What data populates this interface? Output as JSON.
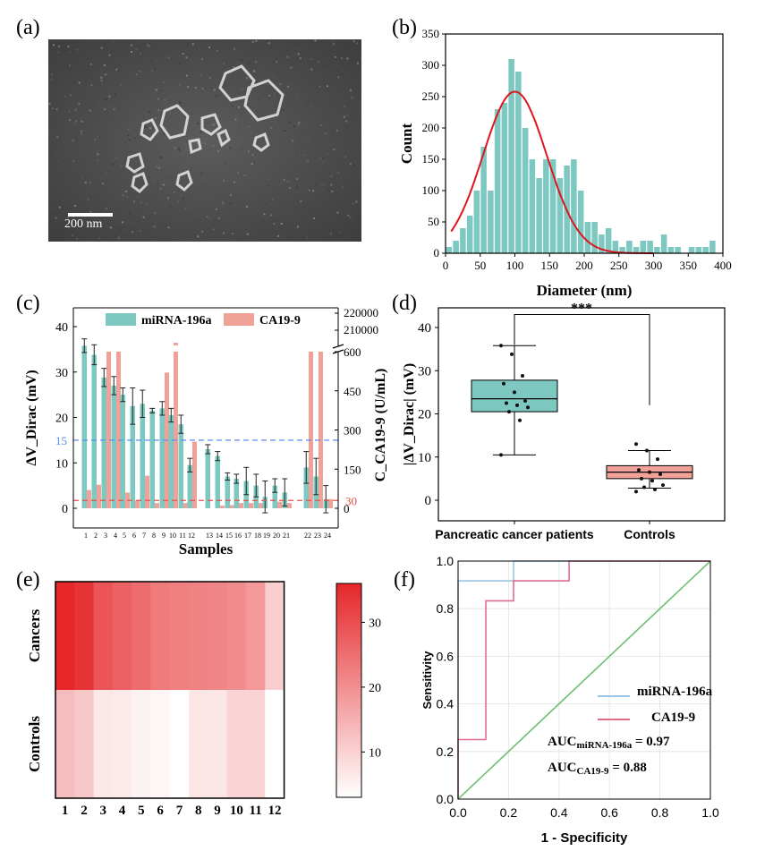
{
  "panel_labels": [
    "(a)",
    "(b)",
    "(c)",
    "(d)",
    "(e)",
    "(f)"
  ],
  "panel_a": {
    "scale_bar_label": "200 nm"
  },
  "chart_data": [
    {
      "panel": "b",
      "type": "bar",
      "xlabel": "Diameter (nm)",
      "ylabel": "Count",
      "xlim": [
        0,
        400
      ],
      "ylim": [
        0,
        350
      ],
      "xticks": [
        0,
        50,
        100,
        150,
        200,
        250,
        300,
        350,
        400
      ],
      "yticks": [
        0,
        50,
        100,
        150,
        200,
        250,
        300,
        350
      ],
      "bin_width": 10,
      "bin_starts": [
        0,
        10,
        20,
        30,
        40,
        50,
        60,
        70,
        80,
        90,
        100,
        110,
        120,
        130,
        140,
        150,
        160,
        170,
        180,
        190,
        200,
        210,
        220,
        230,
        240,
        250,
        260,
        270,
        280,
        290,
        300,
        310,
        320,
        330,
        340,
        350,
        360,
        370,
        380
      ],
      "values": [
        10,
        20,
        40,
        60,
        100,
        170,
        100,
        230,
        240,
        310,
        290,
        200,
        150,
        120,
        150,
        150,
        120,
        140,
        150,
        100,
        50,
        50,
        30,
        40,
        20,
        10,
        20,
        10,
        20,
        20,
        10,
        30,
        10,
        10,
        0,
        10,
        10,
        10,
        20
      ],
      "fit": {
        "type": "gaussian",
        "peak": 258,
        "center": 100,
        "sigma": 46,
        "color": "#e0141e"
      },
      "bar_color": "#7dc9c2"
    },
    {
      "panel": "c",
      "type": "bar",
      "xlabel": "Samples",
      "ylabel_left": "ΔV_Dirac (mV)",
      "ylabel_right": "C_CA19-9 (U/mL)",
      "left_yticks": [
        0,
        10,
        20,
        30,
        40
      ],
      "right_yticks": [
        0,
        150,
        300,
        450,
        600
      ],
      "right_top_ticks": [
        210000,
        220000
      ],
      "ylim_left": [
        0,
        45
      ],
      "threshold_left": {
        "value": 15,
        "label": "15",
        "color": "#5a8ef0"
      },
      "threshold_right": {
        "value": 30,
        "label": "30",
        "color": "#e8524a"
      },
      "categories": [
        "1",
        "2",
        "3",
        "4",
        "5",
        "6",
        "7",
        "8",
        "9",
        "10",
        "11",
        "12",
        "13",
        "14",
        "15",
        "16",
        "17",
        "18",
        "19",
        "20",
        "21",
        "22",
        "23",
        "24"
      ],
      "series": [
        {
          "name": "miRNA-196a",
          "color": "#7dc9c2",
          "values": [
            35.8,
            33.8,
            28.8,
            27.0,
            25.0,
            22.5,
            23.0,
            21.5,
            22.0,
            20.5,
            18.5,
            9.5,
            13.0,
            11.5,
            7.0,
            6.5,
            6.0,
            5.0,
            2.5,
            5.0,
            3.5,
            9.0,
            7.0,
            2.0
          ],
          "errors": [
            1.5,
            2.2,
            2.0,
            2.0,
            1.5,
            4.0,
            3.0,
            0.5,
            1.5,
            1.5,
            2.0,
            1.5,
            1.0,
            1.0,
            0.8,
            1.0,
            3.0,
            2.5,
            3.5,
            1.5,
            3.0,
            3.5,
            4.0,
            3.0
          ]
        },
        {
          "name": "CA19-9",
          "color": "#f0a198",
          "values": [
            70,
            90,
            600,
            600,
            60,
            30,
            125,
            20,
            520,
            600,
            20,
            255,
            0,
            10,
            12,
            20,
            20,
            20,
            0,
            25,
            20,
            600,
            600,
            35
          ],
          "broken_top_marks": [
            10
          ]
        }
      ]
    },
    {
      "panel": "d",
      "type": "box",
      "ylabel": "|ΔV_Dirac| (mV)",
      "ylim": [
        0,
        45
      ],
      "yticks": [
        0,
        10,
        20,
        30,
        40
      ],
      "categories": [
        "Pancreatic cancer patients",
        "Controls"
      ],
      "significance": "***",
      "boxes": [
        {
          "name": "Pancreatic cancer patients",
          "color": "#7dc9c2",
          "min": 10.5,
          "q1": 20.5,
          "median": 23.5,
          "q3": 27.8,
          "max": 35.8,
          "points": [
            35.8,
            33.8,
            28.8,
            27.0,
            25.0,
            23.0,
            22.5,
            22.0,
            21.5,
            20.5,
            18.5,
            10.5
          ]
        },
        {
          "name": "Controls",
          "color": "#f0a198",
          "min": 2.8,
          "q1": 5.0,
          "median": 6.5,
          "q3": 8.0,
          "max": 11.5,
          "points": [
            13.0,
            11.5,
            9.5,
            7.0,
            6.5,
            6.0,
            5.0,
            4.5,
            3.5,
            3.0,
            2.5,
            2.0
          ]
        }
      ]
    },
    {
      "panel": "e",
      "type": "heatmap",
      "row_labels": [
        "Cancers",
        "Controls"
      ],
      "col_labels": [
        "1",
        "2",
        "3",
        "4",
        "5",
        "6",
        "7",
        "8",
        "9",
        "10",
        "11",
        "12"
      ],
      "values": [
        [
          35.8,
          33.8,
          28.8,
          27.0,
          25.0,
          23.0,
          22.5,
          22.0,
          21.5,
          20.5,
          18.5,
          10.5
        ],
        [
          13.0,
          11.5,
          6.5,
          6.0,
          5.0,
          4.5,
          2.5,
          7.0,
          7.0,
          9.5,
          9.5,
          3.0
        ]
      ],
      "colorbar_ticks": [
        10,
        20,
        30
      ],
      "colorbar_range": [
        3,
        36
      ],
      "color_low": "#ffffff",
      "color_high": "#e52629"
    },
    {
      "panel": "f",
      "type": "line",
      "xlabel": "1 - Specificity",
      "ylabel": "Sensitivity",
      "xlim": [
        0,
        1
      ],
      "ylim": [
        0,
        1
      ],
      "ticks": [
        0.0,
        0.2,
        0.4,
        0.6,
        0.8,
        1.0
      ],
      "series": [
        {
          "name": "miRNA-196a",
          "color": "#9bc4e2",
          "x": [
            0,
            0,
            0.22,
            0.22,
            1.0
          ],
          "y": [
            0,
            0.917,
            0.917,
            1.0,
            1.0
          ]
        },
        {
          "name": "CA19-9",
          "color": "#e06c8c",
          "x": [
            0,
            0,
            0.11,
            0.11,
            0.22,
            0.22,
            0.44,
            0.44,
            1.0
          ],
          "y": [
            0,
            0.25,
            0.25,
            0.833,
            0.833,
            0.917,
            0.917,
            1.0,
            1.0
          ]
        },
        {
          "name": "reference",
          "color": "#6fbf73",
          "x": [
            0,
            1
          ],
          "y": [
            0,
            1
          ]
        }
      ],
      "auc": [
        {
          "label": "AUC",
          "sub": "miRNA-196a",
          "value": "= 0.97"
        },
        {
          "label": "AUC",
          "sub": "CA19-9",
          "value": "= 0.88"
        }
      ]
    }
  ]
}
